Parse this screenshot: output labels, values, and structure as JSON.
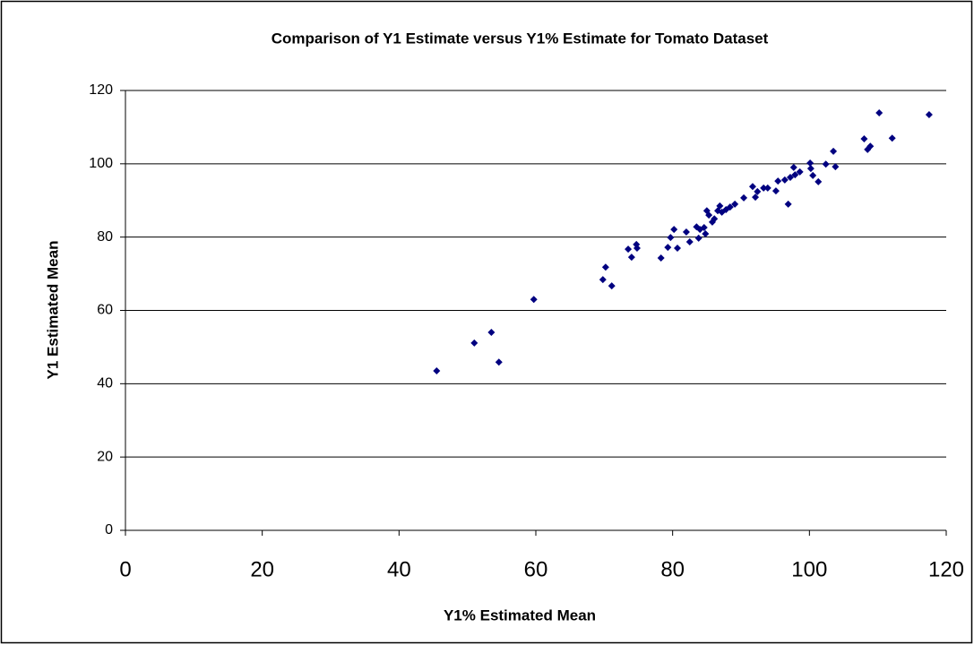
{
  "chart_data": {
    "type": "scatter",
    "title": "Comparison of Y1 Estimate versus Y1% Estimate for Tomato Dataset",
    "x_label": "Y1% Estimated Mean",
    "y_label": "Y1 Estimated Mean",
    "series": [
      {
        "color": "#000080",
        "x": [
          45.5,
          51.0,
          53.5,
          54.6,
          59.7,
          69.8,
          70.2,
          71.1,
          73.5,
          74.0,
          74.7,
          74.8,
          78.3,
          79.3,
          79.7,
          80.2,
          80.7,
          82.0,
          82.5,
          83.5,
          84.0,
          83.8,
          84.6,
          84.8,
          85.0,
          85.3,
          85.8,
          86.1,
          86.6,
          86.9,
          87.2,
          87.8,
          88.4,
          89.1,
          90.4,
          91.7,
          92.1,
          92.4,
          93.3,
          93.9,
          95.1,
          95.4,
          96.4,
          96.9,
          97.2,
          97.7,
          97.9,
          98.6,
          100.1,
          100.2,
          100.5,
          101.3,
          102.4,
          103.5,
          103.8,
          108.0,
          108.5,
          108.9,
          110.2,
          112.1,
          117.5
        ],
        "values": [
          43.5,
          51.1,
          54.0,
          45.9,
          63.0,
          68.4,
          71.8,
          66.7,
          76.7,
          74.5,
          78.0,
          77.0,
          74.3,
          77.2,
          79.9,
          82.1,
          77.0,
          81.4,
          78.7,
          82.8,
          82.1,
          79.7,
          82.6,
          80.9,
          87.2,
          86.0,
          84.1,
          85.0,
          87.2,
          88.5,
          86.8,
          87.5,
          88.2,
          89.0,
          90.7,
          93.8,
          90.9,
          92.4,
          93.4,
          93.4,
          92.6,
          95.3,
          95.6,
          89.0,
          96.3,
          99.0,
          97.0,
          97.8,
          100.2,
          98.7,
          96.8,
          95.1,
          99.9,
          103.4,
          99.2,
          106.8,
          103.9,
          104.8,
          113.9,
          107.0,
          113.4
        ]
      }
    ],
    "xlim": [
      0,
      120
    ],
    "xticks": [
      0,
      20,
      40,
      60,
      80,
      100,
      120
    ],
    "ylim": [
      0,
      120
    ],
    "yticks": [
      0,
      20,
      40,
      60,
      80,
      100,
      120
    ],
    "grid": true
  }
}
